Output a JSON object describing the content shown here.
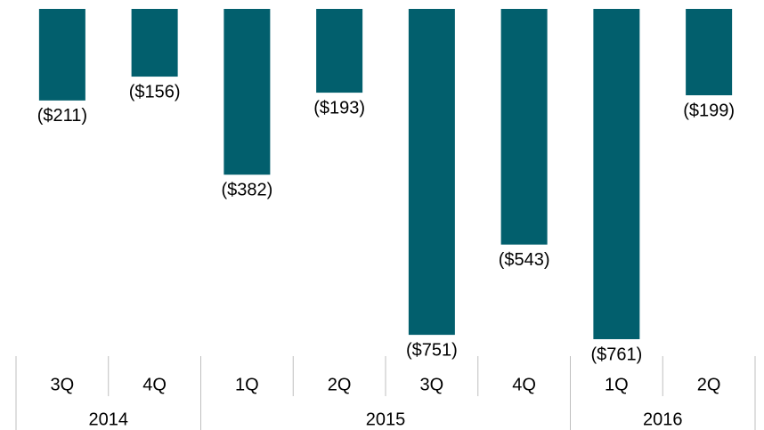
{
  "chart_data": {
    "type": "bar",
    "groups": [
      {
        "name": "2014",
        "categories": [
          "3Q",
          "4Q"
        ]
      },
      {
        "name": "2015",
        "categories": [
          "1Q",
          "2Q",
          "3Q",
          "4Q"
        ]
      },
      {
        "name": "2016",
        "categories": [
          "1Q",
          "2Q"
        ]
      }
    ],
    "values": [
      -211,
      -156,
      -382,
      -193,
      -751,
      -543,
      -761,
      -199
    ],
    "value_labels": [
      "($211)",
      "($156)",
      "($382)",
      "($193)",
      "($751)",
      "($543)",
      "($761)",
      "($199)"
    ],
    "color": "#025f6d",
    "ylim": [
      -800,
      0
    ]
  }
}
